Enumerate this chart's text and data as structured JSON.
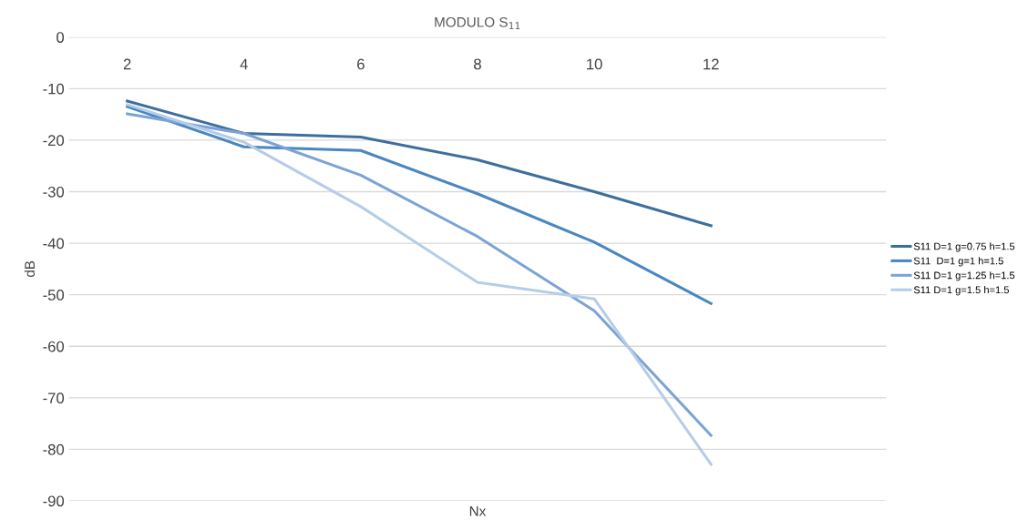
{
  "chart_data": {
    "type": "line",
    "title": "MODULO S$_{11}$",
    "xlabel": "Nx",
    "ylabel": "dB",
    "categories": [
      "2",
      "4",
      "6",
      "8",
      "10",
      "12"
    ],
    "series": [
      {
        "name": "S11 D=1 g=0.75 h=1.5",
        "color": "#3d6f9e",
        "values": [
          -12.4,
          -18.7,
          -19.4,
          -23.8,
          -30,
          -36.6
        ]
      },
      {
        "name": "S11  D=1 g=1 h=1.5",
        "color": "#4a87c0",
        "values": [
          -13.5,
          -21.3,
          -22,
          -30.4,
          -39.8,
          -51.7
        ]
      },
      {
        "name": "S11 D=1 g=1.25 h=1.5",
        "color": "#7ca3d5",
        "values": [
          -14.9,
          -18.7,
          -26.8,
          -38.7,
          -53.1,
          -77.3
        ]
      },
      {
        "name": "S11 D=1 g=1.5 h=1.5",
        "color": "#b5cde7",
        "values": [
          -13.1,
          -20.4,
          -32.9,
          -47.6,
          -50.8,
          -82.9
        ]
      }
    ],
    "ylim": [
      -90,
      0
    ],
    "yticks": [
      -90,
      -80,
      -70,
      -60,
      -50,
      -40,
      -30,
      -20,
      -10,
      0
    ],
    "grid": "y",
    "legend": "right",
    "marker": "none",
    "line_style": "solid"
  }
}
